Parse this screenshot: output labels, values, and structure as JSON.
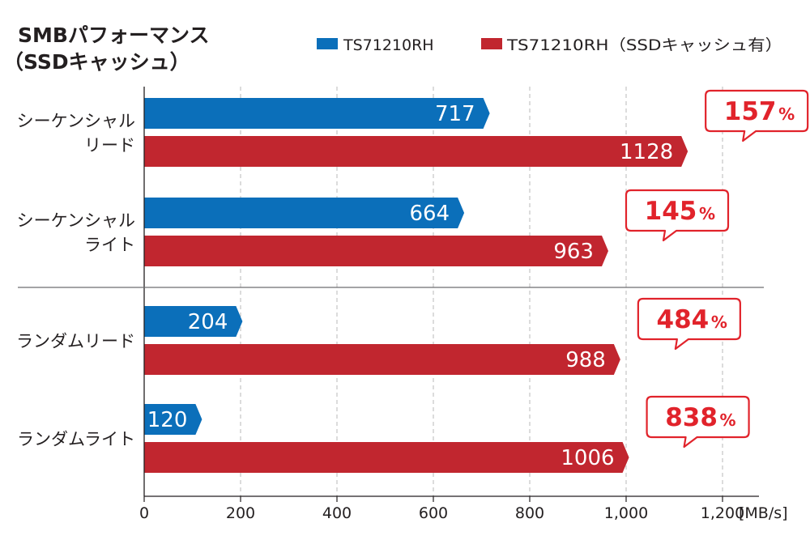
{
  "chart_data": {
    "type": "bar",
    "orientation": "horizontal",
    "title": "SMBパフォーマンス",
    "subtitle": "（SSDキャッシュ）",
    "unit_label": "[MB/s]",
    "xlim": [
      0,
      1300
    ],
    "xticks": [
      0,
      200,
      400,
      600,
      800,
      1000,
      1200
    ],
    "xtick_labels": [
      "0",
      "200",
      "400",
      "600",
      "800",
      "1,000",
      "1,200"
    ],
    "categories": [
      {
        "lines": [
          "シーケンシャル",
          "リード"
        ]
      },
      {
        "lines": [
          "シーケンシャル",
          "ライト"
        ]
      },
      {
        "lines": [
          "ランダムリード"
        ]
      },
      {
        "lines": [
          "ランダムライト"
        ]
      }
    ],
    "series": [
      {
        "name": "TS71210RH",
        "color": "#0b6fba",
        "values": [
          717,
          664,
          204,
          120
        ]
      },
      {
        "name": "TS71210RH（SSDキャッシュ有）",
        "color": "#c1262f",
        "values": [
          1128,
          963,
          988,
          1006
        ]
      }
    ],
    "callouts": [
      "157",
      "145",
      "484",
      "838"
    ],
    "callout_suffix": "%",
    "accent_color": "#e1232b"
  }
}
